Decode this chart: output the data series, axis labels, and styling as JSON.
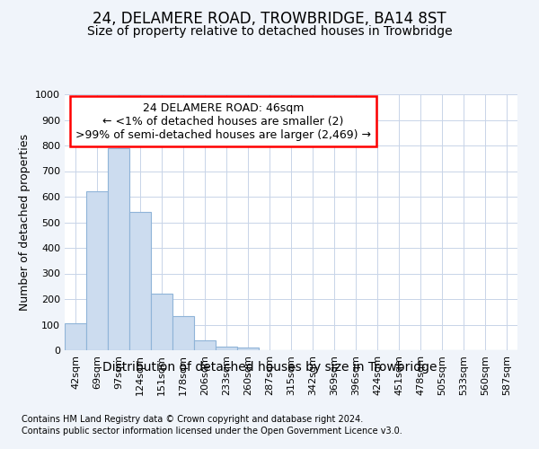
{
  "title": "24, DELAMERE ROAD, TROWBRIDGE, BA14 8ST",
  "subtitle": "Size of property relative to detached houses in Trowbridge",
  "xlabel": "Distribution of detached houses by size in Trowbridge",
  "ylabel": "Number of detached properties",
  "categories": [
    "42sqm",
    "69sqm",
    "97sqm",
    "124sqm",
    "151sqm",
    "178sqm",
    "206sqm",
    "233sqm",
    "260sqm",
    "287sqm",
    "315sqm",
    "342sqm",
    "369sqm",
    "396sqm",
    "424sqm",
    "451sqm",
    "478sqm",
    "505sqm",
    "533sqm",
    "560sqm",
    "587sqm"
  ],
  "values": [
    105,
    620,
    790,
    540,
    220,
    135,
    40,
    15,
    10,
    0,
    0,
    0,
    0,
    0,
    0,
    0,
    0,
    0,
    0,
    0,
    0
  ],
  "bar_color": "#ccdcef",
  "bar_edgecolor": "#8fb4d8",
  "ylim": [
    0,
    1000
  ],
  "yticks": [
    0,
    100,
    200,
    300,
    400,
    500,
    600,
    700,
    800,
    900,
    1000
  ],
  "annotation_text": "24 DELAMERE ROAD: 46sqm\n← <1% of detached houses are smaller (2)\n>99% of semi-detached houses are larger (2,469) →",
  "annotation_box_color": "white",
  "annotation_box_edgecolor": "red",
  "footnote1": "Contains HM Land Registry data © Crown copyright and database right 2024.",
  "footnote2": "Contains public sector information licensed under the Open Government Licence v3.0.",
  "bg_color": "#f0f4fa",
  "plot_bg_color": "white",
  "grid_color": "#c8d4e8",
  "title_fontsize": 12,
  "subtitle_fontsize": 10,
  "xlabel_fontsize": 10,
  "ylabel_fontsize": 9,
  "tick_fontsize": 8,
  "annotation_fontsize": 9,
  "footnote_fontsize": 7
}
